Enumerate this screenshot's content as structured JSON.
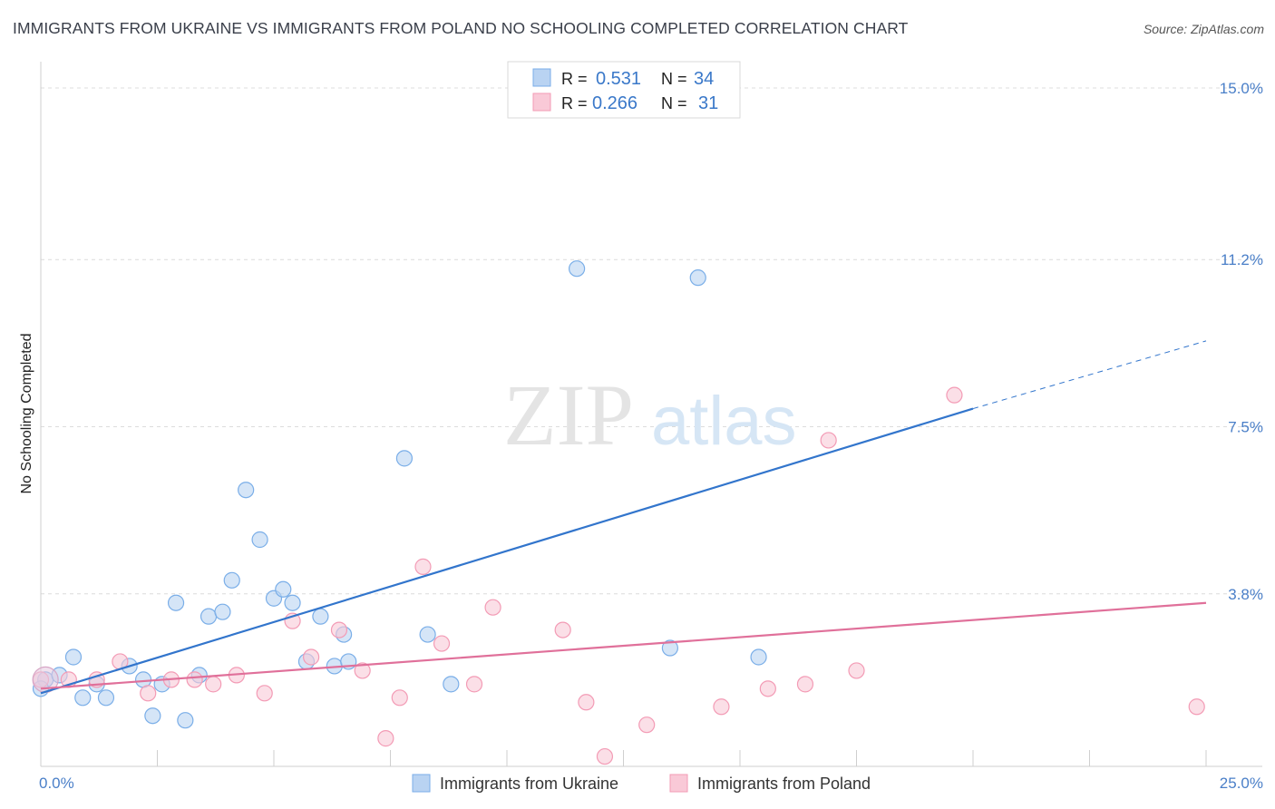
{
  "title": "IMMIGRANTS FROM UKRAINE VS IMMIGRANTS FROM POLAND NO SCHOOLING COMPLETED CORRELATION CHART",
  "source": "Source: ZipAtlas.com",
  "chart_data": {
    "type": "scatter",
    "ylabel": "No Schooling Completed",
    "xlim": [
      0,
      25
    ],
    "ylim": [
      0,
      15
    ],
    "x_tick_labels": [
      "0.0%",
      "25.0%"
    ],
    "y_ticks": [
      3.8,
      7.5,
      11.2,
      15.0
    ],
    "y_tick_labels": [
      "3.8%",
      "7.5%",
      "11.2%",
      "15.0%"
    ],
    "watermark": {
      "zip": "ZIP",
      "atlas": "atlas"
    },
    "series": [
      {
        "name": "Immigrants from Ukraine",
        "color": "#7aaee8",
        "fill": "#b9d3f2",
        "line_color": "#3275cc",
        "R": "0.531",
        "N": "34",
        "trend": {
          "x0": 0.0,
          "y0": 1.6,
          "x1": 20.0,
          "y1": 7.9,
          "dash_to_x": 25.0,
          "dash_to_y": 9.4
        },
        "points": [
          [
            0.1,
            1.9
          ],
          [
            0.4,
            2.0
          ],
          [
            0.7,
            2.4
          ],
          [
            0.9,
            1.5
          ],
          [
            1.2,
            1.8
          ],
          [
            1.4,
            1.5
          ],
          [
            1.9,
            2.2
          ],
          [
            2.2,
            1.9
          ],
          [
            2.4,
            1.1
          ],
          [
            2.6,
            1.8
          ],
          [
            2.9,
            3.6
          ],
          [
            3.1,
            1.0
          ],
          [
            3.4,
            2.0
          ],
          [
            3.6,
            3.3
          ],
          [
            3.9,
            3.4
          ],
          [
            4.1,
            4.1
          ],
          [
            4.4,
            6.1
          ],
          [
            4.7,
            5.0
          ],
          [
            5.0,
            3.7
          ],
          [
            5.2,
            3.9
          ],
          [
            5.4,
            3.6
          ],
          [
            5.7,
            2.3
          ],
          [
            6.0,
            3.3
          ],
          [
            6.3,
            2.2
          ],
          [
            6.5,
            2.9
          ],
          [
            6.6,
            2.3
          ],
          [
            7.8,
            6.8
          ],
          [
            8.3,
            2.9
          ],
          [
            8.8,
            1.8
          ],
          [
            11.5,
            11.0
          ],
          [
            13.5,
            2.6
          ],
          [
            14.1,
            10.8
          ],
          [
            15.4,
            2.4
          ],
          [
            0.0,
            1.7
          ]
        ]
      },
      {
        "name": "Immigrants from Poland",
        "color": "#f39bb5",
        "fill": "#f9c9d7",
        "line_color": "#e0709a",
        "R": "0.266",
        "N": "31",
        "trend": {
          "x0": 0.0,
          "y0": 1.7,
          "x1": 25.0,
          "y1": 3.6
        },
        "points": [
          [
            0.0,
            1.9
          ],
          [
            0.6,
            1.9
          ],
          [
            1.2,
            1.9
          ],
          [
            1.7,
            2.3
          ],
          [
            2.3,
            1.6
          ],
          [
            2.8,
            1.9
          ],
          [
            3.3,
            1.9
          ],
          [
            3.7,
            1.8
          ],
          [
            4.2,
            2.0
          ],
          [
            4.8,
            1.6
          ],
          [
            5.4,
            3.2
          ],
          [
            5.8,
            2.4
          ],
          [
            6.4,
            3.0
          ],
          [
            6.9,
            2.1
          ],
          [
            7.4,
            0.6
          ],
          [
            7.7,
            1.5
          ],
          [
            8.2,
            4.4
          ],
          [
            8.6,
            2.7
          ],
          [
            9.3,
            1.8
          ],
          [
            9.7,
            3.5
          ],
          [
            11.2,
            3.0
          ],
          [
            11.7,
            1.4
          ],
          [
            12.1,
            0.2
          ],
          [
            13.0,
            0.9
          ],
          [
            14.6,
            1.3
          ],
          [
            15.6,
            1.7
          ],
          [
            16.4,
            1.8
          ],
          [
            16.9,
            7.2
          ],
          [
            17.5,
            2.1
          ],
          [
            19.6,
            8.2
          ],
          [
            24.8,
            1.3
          ]
        ]
      }
    ]
  }
}
